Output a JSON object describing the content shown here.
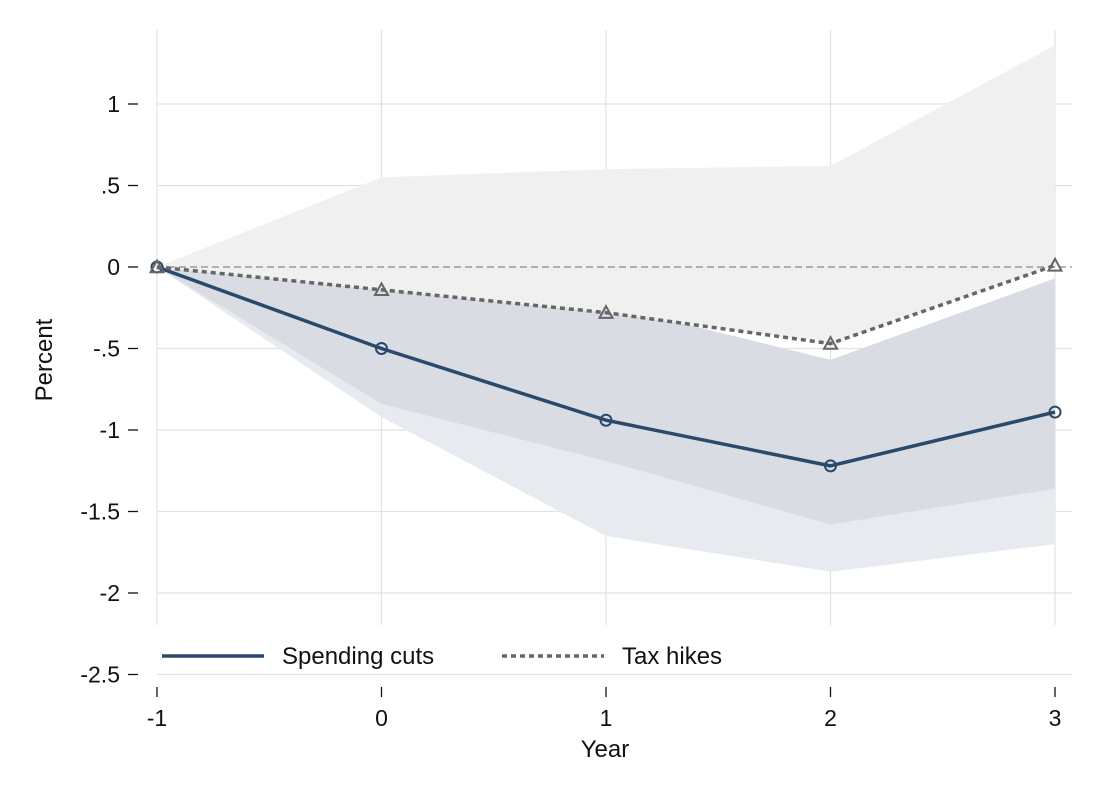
{
  "chart_data": {
    "type": "line",
    "xlabel": "Year",
    "ylabel": "Percent",
    "x": [
      -1,
      0,
      1,
      2,
      3
    ],
    "xticks": [
      "-1",
      "0",
      "1",
      "2",
      "3"
    ],
    "yticks": [
      1,
      0.5,
      0,
      -0.5,
      -1,
      -1.5,
      -2,
      -2.5
    ],
    "ytick_labels": [
      "1",
      ".5",
      "0",
      "-.5",
      "-1",
      "-1.5",
      "-2",
      "-2.5"
    ],
    "xlim": [
      -1,
      3
    ],
    "ylim": [
      -2.5,
      1.45
    ],
    "grid": true,
    "legend_position": "bottom",
    "reference_line": 0,
    "series": [
      {
        "name": "Spending cuts",
        "values": [
          0,
          -0.5,
          -0.94,
          -1.22,
          -0.89
        ],
        "color": "#2b4a6b",
        "style": "solid",
        "marker": "circle",
        "bands": [
          {
            "lower": [
              0,
              -0.92,
              -1.65,
              -1.87,
              -1.7
            ],
            "upper": [
              0,
              -0.05,
              -0.23,
              -0.57,
              -0.07
            ],
            "color": "#e7ebf0"
          },
          {
            "lower": [
              0,
              -0.84,
              -1.19,
              -1.58,
              -1.36
            ],
            "upper": [
              0,
              -0.05,
              -0.23,
              -0.57,
              -0.07
            ],
            "color": "#d9dde3"
          }
        ]
      },
      {
        "name": "Tax hikes",
        "values": [
          0,
          -0.14,
          -0.28,
          -0.47,
          0.01
        ],
        "color": "#666666",
        "style": "dotted",
        "marker": "triangle",
        "bands": [
          {
            "lower": [
              0,
              -0.14,
              -0.28,
              -0.47,
              0.01
            ],
            "upper": [
              0,
              0.55,
              0.6,
              0.62,
              1.36
            ],
            "color": "#f0f0f0"
          }
        ]
      }
    ]
  }
}
